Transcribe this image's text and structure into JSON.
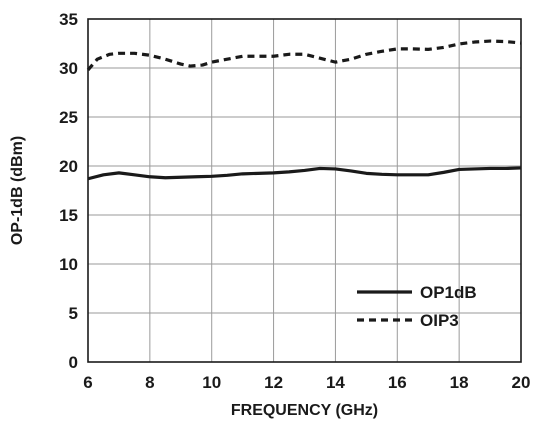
{
  "chart_data": {
    "type": "line",
    "xlabel": "FREQUENCY (GHz)",
    "ylabel": "OP-1dB (dBm)",
    "xlim": [
      6,
      20
    ],
    "ylim": [
      0,
      35
    ],
    "xticks": [
      6,
      8,
      10,
      12,
      14,
      16,
      18,
      20
    ],
    "yticks": [
      0,
      5,
      10,
      15,
      20,
      25,
      30,
      35
    ],
    "grid": true,
    "legend_position": "bottom-right",
    "series": [
      {
        "name": "OP1dB",
        "style": "solid",
        "color": "#1a1a1a",
        "x": [
          6.0,
          6.5,
          7.0,
          7.5,
          8.0,
          8.5,
          9.0,
          9.5,
          10.0,
          10.5,
          11.0,
          11.5,
          12.0,
          12.5,
          13.0,
          13.5,
          14.0,
          14.5,
          15.0,
          15.5,
          16.0,
          16.5,
          17.0,
          17.5,
          18.0,
          18.5,
          19.0,
          19.5,
          20.0
        ],
        "y": [
          18.7,
          19.1,
          19.3,
          19.1,
          18.9,
          18.8,
          18.85,
          18.9,
          18.95,
          19.05,
          19.2,
          19.25,
          19.3,
          19.4,
          19.55,
          19.75,
          19.7,
          19.5,
          19.25,
          19.15,
          19.1,
          19.1,
          19.1,
          19.35,
          19.65,
          19.7,
          19.75,
          19.75,
          19.8
        ]
      },
      {
        "name": "OIP3",
        "style": "dashed",
        "color": "#1a1a1a",
        "x": [
          6.0,
          6.3,
          6.7,
          7.0,
          7.5,
          8.0,
          8.5,
          9.0,
          9.3,
          9.7,
          10.0,
          10.5,
          11.0,
          11.5,
          12.0,
          12.5,
          13.0,
          13.5,
          14.0,
          14.5,
          15.0,
          15.5,
          16.0,
          16.5,
          17.0,
          17.5,
          18.0,
          18.5,
          19.0,
          19.5,
          20.0
        ],
        "y": [
          29.8,
          30.9,
          31.4,
          31.5,
          31.5,
          31.3,
          30.9,
          30.4,
          30.2,
          30.3,
          30.6,
          30.9,
          31.2,
          31.2,
          31.2,
          31.4,
          31.4,
          31.0,
          30.6,
          30.9,
          31.4,
          31.7,
          31.95,
          31.95,
          31.9,
          32.1,
          32.45,
          32.65,
          32.75,
          32.7,
          32.55
        ]
      }
    ]
  }
}
